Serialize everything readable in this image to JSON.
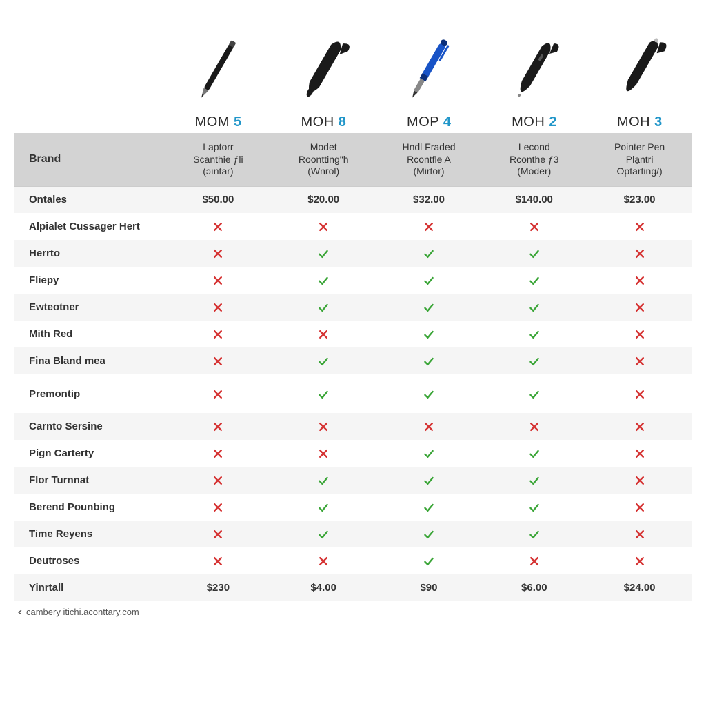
{
  "colors": {
    "model_black": "#2b2b2b",
    "model_blue": "#2196c9",
    "check_green": "#3aa537",
    "cross_red": "#d53232",
    "header_bg": "#d3d3d3",
    "row_odd_bg": "#f5f5f5",
    "row_even_bg": "#ffffff"
  },
  "products": [
    {
      "model_prefix": "MOM",
      "model_num": "5",
      "subtitle_l1": "Laptorr",
      "subtitle_l2": "Scanthie ƒli",
      "subtitle_l3": "(ɔıntar)",
      "pen_color": "#1a1a1a",
      "pen_shape": "pencil"
    },
    {
      "model_prefix": "MOH",
      "model_num": "8",
      "subtitle_l1": "Modet",
      "subtitle_l2": "Roontting\"h",
      "subtitle_l3": "(Wnrol)",
      "pen_color": "#1a1a1a",
      "pen_shape": "fat_stylus"
    },
    {
      "model_prefix": "MOP",
      "model_num": "4",
      "subtitle_l1": "Hndl Fraded",
      "subtitle_l2": "Rcontfle A",
      "subtitle_l3": "(Mirtor)",
      "pen_color": "#1853c6",
      "pen_shape": "blue_pen"
    },
    {
      "model_prefix": "MOH",
      "model_num": "2",
      "subtitle_l1": "Lecond",
      "subtitle_l2": "Rconthe ƒ3",
      "subtitle_l3": "(Moder)",
      "pen_color": "#1a1a1a",
      "pen_shape": "oval_pen"
    },
    {
      "model_prefix": "MOH",
      "model_num": "3",
      "subtitle_l1": "Pointer Pen",
      "subtitle_l2": "Plạntri",
      "subtitle_l3": "Optarting/)",
      "pen_color": "#1a1a1a",
      "pen_shape": "pointer_pen"
    }
  ],
  "brand_label": "Brand",
  "rows": [
    {
      "label": "Ontales",
      "type": "price",
      "values": [
        "$50.00",
        "$20.00",
        "$32.00",
        "$140.00",
        "$23.00"
      ]
    },
    {
      "label": "Alpialet Cussager Hert",
      "type": "bool",
      "values": [
        false,
        false,
        false,
        false,
        false
      ]
    },
    {
      "label": "Herrto",
      "type": "bool",
      "values": [
        false,
        true,
        true,
        true,
        false
      ]
    },
    {
      "label": "Fliepy",
      "type": "bool",
      "values": [
        false,
        true,
        true,
        true,
        false
      ]
    },
    {
      "label": "Ewteotner",
      "type": "bool",
      "values": [
        false,
        true,
        true,
        true,
        false
      ]
    },
    {
      "label": "Mith Red",
      "type": "bool",
      "values": [
        false,
        false,
        true,
        true,
        false
      ]
    },
    {
      "label": "Fina Bland mea",
      "type": "bool",
      "values": [
        false,
        true,
        true,
        true,
        false
      ]
    },
    {
      "label": "Premontip",
      "type": "bool",
      "values": [
        false,
        true,
        true,
        true,
        false
      ],
      "tall": true
    },
    {
      "label": "Carnto Sersine",
      "type": "bool",
      "values": [
        false,
        false,
        false,
        false,
        false
      ]
    },
    {
      "label": "Pign Carterty",
      "type": "bool",
      "values": [
        false,
        false,
        true,
        true,
        false
      ]
    },
    {
      "label": "Flor Turnnat",
      "type": "bool",
      "values": [
        false,
        true,
        true,
        true,
        false
      ]
    },
    {
      "label": "Berend Pounbing",
      "type": "bool",
      "values": [
        false,
        true,
        true,
        true,
        false
      ]
    },
    {
      "label": "Time Reyens",
      "type": "bool",
      "values": [
        false,
        true,
        true,
        true,
        false
      ]
    },
    {
      "label": "Deutroses",
      "type": "bool",
      "values": [
        false,
        false,
        true,
        false,
        false
      ]
    },
    {
      "label": "Yinrtall",
      "type": "price",
      "values": [
        "$230",
        "$4.00",
        "$90",
        "$6.00",
        "$24.00"
      ]
    }
  ],
  "footer": "cambery itichi.aconttary.com"
}
